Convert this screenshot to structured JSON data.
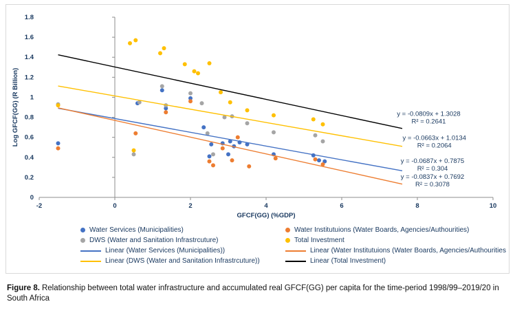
{
  "figure": {
    "caption_label": "Figure 8.",
    "caption_text": "Relationship between total water infrastructure and accumulated real GFCF(GG) per capita for the time-period 1998/99–2019/20 in South Africa"
  },
  "colors": {
    "chart_text": "#17375E",
    "axis": "#8C8C8C",
    "border": "#D9D9D9",
    "blue": "#4472C4",
    "orange": "#ED7D31",
    "gray": "#A5A5A5",
    "yellow": "#FFC000",
    "black": "#000000"
  },
  "chart_data": {
    "type": "scatter",
    "title": "",
    "xlabel": "GFCF(GG) (%GDP)",
    "ylabel": "Log GFCF(GG) (R Billion)",
    "xlim": [
      -2,
      10
    ],
    "ylim": [
      0,
      1.8
    ],
    "grid": false,
    "legend_position": "bottom",
    "x_ticks": {
      "values": [
        -2,
        0,
        2,
        4,
        6,
        8,
        10
      ],
      "labels": [
        "-2",
        "0",
        "2",
        "4",
        "6",
        "8",
        "10"
      ]
    },
    "y_ticks": {
      "values": [
        0,
        0.2,
        0.4,
        0.6,
        0.8,
        1,
        1.2,
        1.4,
        1.6,
        1.8
      ],
      "labels": [
        "0",
        "0.2",
        "0.4",
        "0.6",
        "0.8",
        "1",
        "1.2",
        "1.4",
        "1.6",
        "1.8"
      ]
    },
    "series": [
      {
        "name": "Water Services (Municipalities)",
        "color": "#4472C4",
        "points": [
          [
            -1.5,
            0.54
          ],
          [
            0.6,
            0.94
          ],
          [
            1.25,
            1.07
          ],
          [
            1.35,
            0.89
          ],
          [
            2.0,
            0.99
          ],
          [
            2.35,
            0.7
          ],
          [
            2.5,
            0.41
          ],
          [
            2.55,
            0.53
          ],
          [
            2.85,
            0.54
          ],
          [
            3.0,
            0.43
          ],
          [
            3.05,
            0.56
          ],
          [
            3.15,
            0.51
          ],
          [
            3.3,
            0.55
          ],
          [
            3.5,
            0.53
          ],
          [
            4.2,
            0.43
          ],
          [
            5.25,
            0.42
          ],
          [
            5.4,
            0.37
          ],
          [
            5.55,
            0.36
          ]
        ]
      },
      {
        "name": "Water Institutuions (Water Boards, Agencies/Authourities)",
        "color": "#ED7D31",
        "points": [
          [
            -1.5,
            0.49
          ],
          [
            0.55,
            0.64
          ],
          [
            1.35,
            0.85
          ],
          [
            2.0,
            0.96
          ],
          [
            2.5,
            0.36
          ],
          [
            2.6,
            0.32
          ],
          [
            2.85,
            0.49
          ],
          [
            3.1,
            0.37
          ],
          [
            3.25,
            0.6
          ],
          [
            3.55,
            0.31
          ],
          [
            4.25,
            0.39
          ],
          [
            5.3,
            0.38
          ],
          [
            5.5,
            0.33
          ]
        ]
      },
      {
        "name": "DWS (Water and Sanitation Infrastrcuture)",
        "color": "#A5A5A5",
        "points": [
          [
            -1.5,
            0.93
          ],
          [
            0.5,
            0.43
          ],
          [
            0.65,
            0.95
          ],
          [
            1.25,
            1.11
          ],
          [
            1.35,
            0.92
          ],
          [
            2.0,
            1.04
          ],
          [
            2.3,
            0.94
          ],
          [
            2.45,
            0.64
          ],
          [
            2.6,
            0.43
          ],
          [
            2.9,
            0.8
          ],
          [
            3.1,
            0.81
          ],
          [
            3.5,
            0.74
          ],
          [
            4.2,
            0.65
          ],
          [
            5.3,
            0.62
          ],
          [
            5.5,
            0.56
          ]
        ]
      },
      {
        "name": "Total Investment",
        "color": "#FFC000",
        "points": [
          [
            -1.5,
            0.92
          ],
          [
            0.4,
            1.54
          ],
          [
            0.55,
            1.57
          ],
          [
            0.5,
            0.47
          ],
          [
            1.2,
            1.44
          ],
          [
            1.3,
            1.49
          ],
          [
            1.85,
            1.33
          ],
          [
            2.1,
            1.26
          ],
          [
            2.2,
            1.24
          ],
          [
            2.5,
            1.34
          ],
          [
            2.8,
            1.05
          ],
          [
            3.05,
            0.95
          ],
          [
            3.5,
            0.87
          ],
          [
            4.2,
            0.82
          ],
          [
            5.25,
            0.78
          ],
          [
            5.5,
            0.73
          ]
        ]
      }
    ],
    "trendlines": [
      {
        "name": "Linear (Total Investment)",
        "color": "#000000",
        "slope": -0.0809,
        "intercept": 1.3028,
        "r2": 0.2641,
        "x_range": [
          -1.5,
          7.6
        ],
        "equation_label": "y = -0.0809x + 1.3028",
        "r2_label": "R² = 0.2641",
        "label_pos": [
          8.3,
          0.815
        ]
      },
      {
        "name": "Linear (DWS (Water and Sanitation Infrastrcuture))",
        "color": "#FFC000",
        "slope": -0.0663,
        "intercept": 1.0134,
        "r2": 0.2064,
        "x_range": [
          -1.5,
          7.6
        ],
        "equation_label": "y = -0.0663x + 1.0134",
        "r2_label": "R² = 0.2064",
        "label_pos": [
          8.45,
          0.575
        ]
      },
      {
        "name": "Linear (Water Services (Municipalities))",
        "color": "#4472C4",
        "slope": -0.0687,
        "intercept": 0.7875,
        "r2": 0.304,
        "x_range": [
          -1.5,
          7.6
        ],
        "equation_label": "y = -0.0687x + 0.7875",
        "r2_label": "R² = 0.304",
        "label_pos": [
          8.4,
          0.345
        ]
      },
      {
        "name": "Linear (Water Institutuions (Water Boards, Agencies/Authourities))",
        "color": "#ED7D31",
        "slope": -0.0837,
        "intercept": 0.7692,
        "r2": 0.3078,
        "x_range": [
          -1.5,
          7.6
        ],
        "equation_label": "y = -0.0837x + 0.7692",
        "r2_label": "R² = 0.3078",
        "label_pos": [
          8.4,
          0.185
        ]
      }
    ]
  },
  "legend": {
    "items": [
      {
        "label": "Water Services (Municipalities)",
        "marker": "dot",
        "color": "#4472C4"
      },
      {
        "label": "Water Institutuions (Water Boards, Agencies/Authourities)",
        "marker": "dot",
        "color": "#ED7D31"
      },
      {
        "label": "DWS (Water and Sanitation Infrastrcuture)",
        "marker": "dot",
        "color": "#A5A5A5"
      },
      {
        "label": "Total Investment",
        "marker": "dot",
        "color": "#FFC000"
      },
      {
        "label": "Linear (Water Services (Municipalities))",
        "marker": "line",
        "color": "#4472C4"
      },
      {
        "label": "Linear (Water Institutuions (Water Boards, Agencies/Authourities))",
        "marker": "line",
        "color": "#ED7D31"
      },
      {
        "label": "Linear (DWS (Water and Sanitation Infrastrcuture))",
        "marker": "line",
        "color": "#FFC000"
      },
      {
        "label": "Linear (Total Investment)",
        "marker": "line",
        "color": "#000000"
      }
    ]
  }
}
